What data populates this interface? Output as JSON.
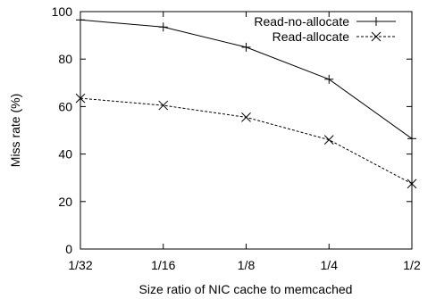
{
  "chart_data": {
    "type": "line",
    "xlabel": "Size ratio of NIC cache to memcached",
    "ylabel": "Miss rate (%)",
    "categories": [
      "1/32",
      "1/16",
      "1/8",
      "1/4",
      "1/2"
    ],
    "ylim": [
      0,
      100
    ],
    "yticks": [
      0,
      20,
      40,
      60,
      80,
      100
    ],
    "grid": false,
    "legend_position": "top-right",
    "series": [
      {
        "name": "Read-no-allocate",
        "values": [
          96.5,
          93.5,
          85,
          71.5,
          46.5
        ],
        "marker": "plus",
        "line_style": "solid",
        "color": "#000000"
      },
      {
        "name": "Read-allocate",
        "values": [
          63.5,
          60.5,
          55.5,
          46,
          27.5
        ],
        "marker": "x",
        "line_style": "dashed",
        "color": "#000000"
      }
    ]
  }
}
